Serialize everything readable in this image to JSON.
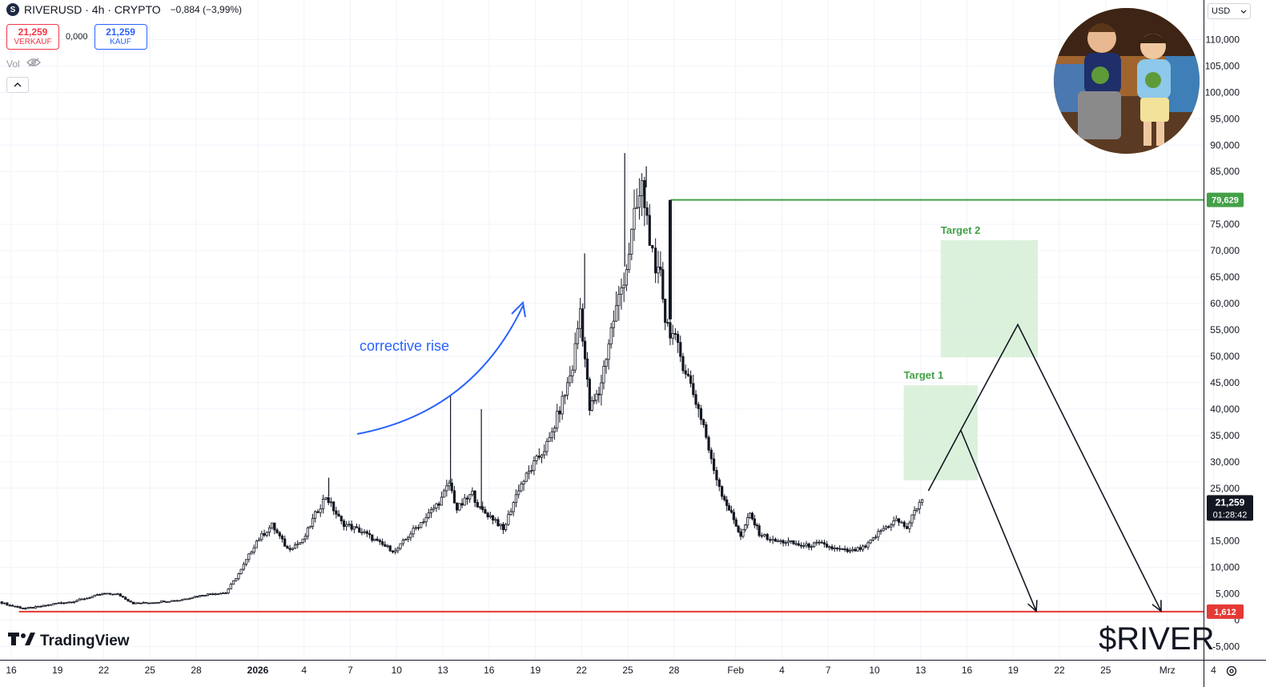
{
  "header": {
    "symbol_title": "RIVERUSD · 4h · CRYPTO",
    "change": "−0,884 (−3,99%)",
    "logo_letter": "S"
  },
  "trade": {
    "sell_price": "21,259",
    "sell_label": "VERKAUF",
    "spread": "0,000",
    "buy_price": "21,259",
    "buy_label": "KAUF"
  },
  "indicators": {
    "vol_label": "Vol"
  },
  "currency": {
    "label": "USD"
  },
  "branding": {
    "tradingview": "TradingView",
    "ticker": "$RIVER"
  },
  "colors": {
    "green": "#43a047",
    "red": "#e53935",
    "blue": "#2962ff",
    "zone": "#d6efd6"
  },
  "chart_data": {
    "type": "candlestick",
    "title": "",
    "y_range": [
      -7500,
      117500
    ],
    "y_ticks": [
      110000,
      105000,
      100000,
      95000,
      90000,
      85000,
      75000,
      70000,
      65000,
      60000,
      55000,
      50000,
      45000,
      40000,
      35000,
      30000,
      25000,
      15000,
      10000,
      5000,
      0,
      -5000
    ],
    "x_ticks": [
      {
        "label": "16",
        "day": 0
      },
      {
        "label": "19",
        "day": 3
      },
      {
        "label": "22",
        "day": 6
      },
      {
        "label": "25",
        "day": 9
      },
      {
        "label": "28",
        "day": 12
      },
      {
        "label": "2026",
        "day": 16
      },
      {
        "label": "4",
        "day": 19
      },
      {
        "label": "7",
        "day": 22
      },
      {
        "label": "10",
        "day": 25
      },
      {
        "label": "13",
        "day": 28
      },
      {
        "label": "16",
        "day": 31
      },
      {
        "label": "19",
        "day": 34
      },
      {
        "label": "22",
        "day": 37
      },
      {
        "label": "25",
        "day": 40
      },
      {
        "label": "28",
        "day": 43
      },
      {
        "label": "Feb",
        "day": 47
      },
      {
        "label": "4",
        "day": 50
      },
      {
        "label": "7",
        "day": 53
      },
      {
        "label": "10",
        "day": 56
      },
      {
        "label": "13",
        "day": 59
      },
      {
        "label": "16",
        "day": 62
      },
      {
        "label": "19",
        "day": 65
      },
      {
        "label": "22",
        "day": 68
      },
      {
        "label": "25",
        "day": 71
      },
      {
        "label": "Mrz",
        "day": 75
      },
      {
        "label": "4",
        "day": 78
      }
    ],
    "price_path": [
      [
        -0.7,
        3500
      ],
      [
        0,
        2800
      ],
      [
        1,
        2200
      ],
      [
        2,
        2600
      ],
      [
        3,
        3200
      ],
      [
        4,
        3500
      ],
      [
        5,
        4200
      ],
      [
        6,
        5000
      ],
      [
        7,
        4900
      ],
      [
        8,
        3200
      ],
      [
        9,
        3300
      ],
      [
        10,
        3600
      ],
      [
        11,
        3800
      ],
      [
        12,
        4500
      ],
      [
        13,
        5000
      ],
      [
        14,
        5200
      ],
      [
        15,
        9500
      ],
      [
        16,
        15000
      ],
      [
        17,
        18000
      ],
      [
        18,
        13500
      ],
      [
        19,
        15000
      ],
      [
        19.8,
        20000
      ],
      [
        20.5,
        23500
      ],
      [
        21.5,
        18500
      ],
      [
        23,
        16500
      ],
      [
        24,
        14500
      ],
      [
        25,
        13000
      ],
      [
        26,
        16500
      ],
      [
        27,
        19500
      ],
      [
        28,
        23000
      ],
      [
        28.5,
        26000
      ],
      [
        29,
        21000
      ],
      [
        30,
        24000
      ],
      [
        30.5,
        21000
      ],
      [
        31.5,
        19000
      ],
      [
        32,
        17000
      ],
      [
        33,
        25000
      ],
      [
        34,
        29500
      ],
      [
        35,
        34000
      ],
      [
        36,
        43000
      ],
      [
        36.5,
        48000
      ],
      [
        37,
        59000
      ],
      [
        37.6,
        40000
      ],
      [
        38.2,
        43000
      ],
      [
        39,
        55000
      ],
      [
        39.5,
        61000
      ],
      [
        40,
        67000
      ],
      [
        40.5,
        76000
      ],
      [
        41,
        82000
      ],
      [
        41.5,
        73000
      ],
      [
        41.9,
        64000
      ],
      [
        42.2,
        67000
      ],
      [
        42.5,
        57000
      ],
      [
        43,
        54000
      ],
      [
        44,
        46000
      ],
      [
        45,
        37000
      ],
      [
        45.5,
        30000
      ],
      [
        46.2,
        24000
      ],
      [
        46.8,
        20000
      ],
      [
        47.4,
        16000
      ],
      [
        48,
        20000
      ],
      [
        48.6,
        16500
      ],
      [
        49.5,
        15000
      ],
      [
        50.5,
        14800
      ],
      [
        51.5,
        14000
      ],
      [
        52.5,
        14500
      ],
      [
        53.5,
        13500
      ],
      [
        54.5,
        13000
      ],
      [
        55.5,
        13800
      ],
      [
        56.5,
        17000
      ],
      [
        57.5,
        19000
      ],
      [
        58.2,
        17500
      ],
      [
        59,
        22500
      ],
      [
        59.2,
        23000
      ]
    ],
    "wick_spikes": [
      [
        20.6,
        27000
      ],
      [
        28.5,
        42500
      ],
      [
        30.5,
        40000
      ],
      [
        37.2,
        69500
      ],
      [
        39.8,
        88500
      ],
      [
        41.2,
        86000
      ]
    ],
    "levels": [
      {
        "price": 79629,
        "label": "79,629",
        "from_day": 42.8,
        "color": "#43a047"
      },
      {
        "price": 1612,
        "label": "1,612",
        "from_day": 0.5,
        "color": "#e53935"
      }
    ],
    "current_price": {
      "value": 21259,
      "label": "21,259",
      "countdown": "01:28:42"
    },
    "zones": [
      {
        "name": "Target 1",
        "day_from": 57.9,
        "day_to": 62.7,
        "price_from": 26500,
        "price_to": 44500
      },
      {
        "name": "Target 2",
        "day_from": 60.3,
        "day_to": 66.6,
        "price_from": 49800,
        "price_to": 72000
      }
    ],
    "projection_paths": [
      [
        [
          59.5,
          24500
        ],
        [
          61.6,
          36000
        ],
        [
          65.3,
          56000
        ],
        [
          74.6,
          1700
        ]
      ],
      [
        [
          61.6,
          36000
        ],
        [
          66.5,
          1700
        ]
      ]
    ],
    "annotation": {
      "text": "corrective rise"
    }
  }
}
